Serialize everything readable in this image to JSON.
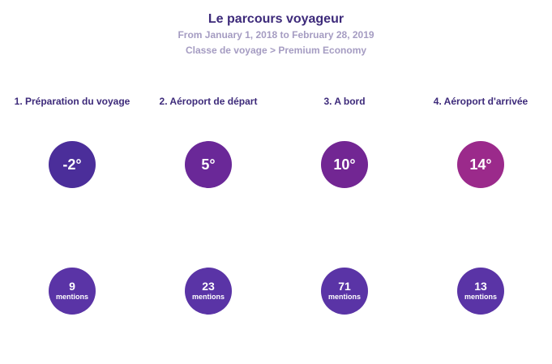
{
  "header": {
    "title": "Le parcours voyageur",
    "date_range": "From January 1, 2018 to February 28, 2019",
    "filter": "Classe de voyage > Premium Economy"
  },
  "stages": [
    {
      "label": "1. Préparation du voyage",
      "temperature": "-2°",
      "mentions_count": "9",
      "mentions_label": "mentions",
      "color": "#4b2e9a"
    },
    {
      "label": "2. Aéroport de départ",
      "temperature": "5°",
      "mentions_count": "23",
      "mentions_label": "mentions",
      "color": "#6a2898"
    },
    {
      "label": "3. A bord",
      "temperature": "10°",
      "mentions_count": "71",
      "mentions_label": "mentions",
      "color": "#722693"
    },
    {
      "label": "4. Aéroport d'arrivée",
      "temperature": "14°",
      "mentions_count": "13",
      "mentions_label": "mentions",
      "color": "#9b2a8b"
    }
  ],
  "colors": {
    "title": "#3d2a7a",
    "subtitle": "#a59cc2",
    "mentions_circle": "#5a34a6"
  }
}
